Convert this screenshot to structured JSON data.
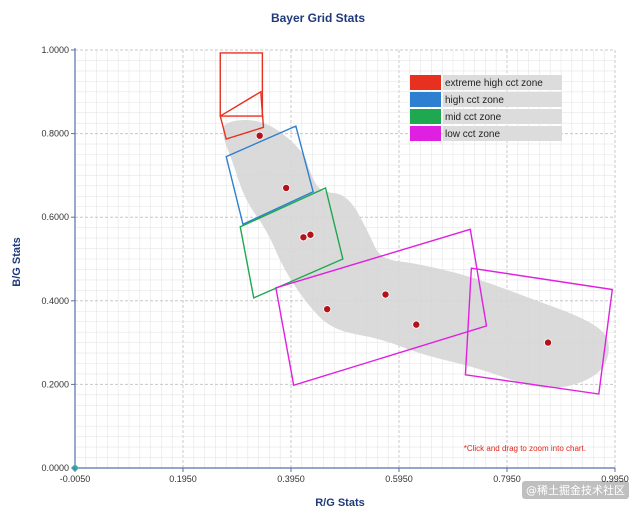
{
  "chart_data": {
    "type": "scatter",
    "title": "Bayer Grid Stats",
    "xlabel": "R/G Stats",
    "ylabel": "B/G Stats",
    "xlim": [
      -0.005,
      0.995
    ],
    "ylim": [
      0.0,
      1.0
    ],
    "x_ticks": [
      "-0.0050",
      "0.1950",
      "0.3950",
      "0.5950",
      "0.7950",
      "0.9950"
    ],
    "y_ticks": [
      "0.0000",
      "0.2000",
      "0.4000",
      "0.6000",
      "0.8000",
      "1.0000"
    ],
    "grid": true,
    "points": [
      {
        "x": 0.337,
        "y": 0.795
      },
      {
        "x": 0.386,
        "y": 0.67
      },
      {
        "x": 0.418,
        "y": 0.552
      },
      {
        "x": 0.431,
        "y": 0.558
      },
      {
        "x": 0.462,
        "y": 0.38
      },
      {
        "x": 0.57,
        "y": 0.415
      },
      {
        "x": 0.627,
        "y": 0.343
      },
      {
        "x": 0.871,
        "y": 0.3
      }
    ],
    "origin_marker": {
      "x": -0.005,
      "y": 0.0
    },
    "zones": [
      {
        "legend": "extreme high cct zone",
        "color": "#e8301f",
        "polygons": [
          [
            [
              0.264,
              0.993
            ],
            [
              0.342,
              0.993
            ],
            [
              0.342,
              0.842
            ],
            [
              0.264,
              0.842
            ]
          ],
          [
            [
              0.264,
              0.842
            ],
            [
              0.339,
              0.9
            ],
            [
              0.344,
              0.815
            ],
            [
              0.275,
              0.787
            ]
          ]
        ]
      },
      {
        "legend": "high cct zone",
        "color": "#2f7fd0",
        "polygons": [
          [
            [
              0.275,
              0.745
            ],
            [
              0.404,
              0.818
            ],
            [
              0.436,
              0.661
            ],
            [
              0.306,
              0.583
            ]
          ]
        ]
      },
      {
        "legend": "mid cct zone",
        "color": "#1ea84f",
        "polygons": [
          [
            [
              0.301,
              0.577
            ],
            [
              0.459,
              0.67
            ],
            [
              0.491,
              0.5
            ],
            [
              0.326,
              0.407
            ]
          ]
        ]
      },
      {
        "legend": "low cct zone",
        "color": "#e020e0",
        "polygons": [
          [
            [
              0.367,
              0.431
            ],
            [
              0.727,
              0.571
            ],
            [
              0.757,
              0.34
            ],
            [
              0.4,
              0.198
            ]
          ],
          [
            [
              0.729,
              0.478
            ],
            [
              0.99,
              0.427
            ],
            [
              0.965,
              0.177
            ],
            [
              0.718,
              0.223
            ]
          ]
        ]
      }
    ],
    "shaded_region": [
      [
        0.269,
        0.83
      ],
      [
        0.345,
        0.835
      ],
      [
        0.418,
        0.76
      ],
      [
        0.432,
        0.7
      ],
      [
        0.45,
        0.66
      ],
      [
        0.5,
        0.655
      ],
      [
        0.54,
        0.56
      ],
      [
        0.56,
        0.5
      ],
      [
        0.625,
        0.49
      ],
      [
        0.725,
        0.46
      ],
      [
        0.83,
        0.41
      ],
      [
        0.955,
        0.35
      ],
      [
        0.99,
        0.3
      ],
      [
        0.97,
        0.22
      ],
      [
        0.87,
        0.18
      ],
      [
        0.74,
        0.24
      ],
      [
        0.64,
        0.27
      ],
      [
        0.56,
        0.31
      ],
      [
        0.47,
        0.33
      ],
      [
        0.42,
        0.4
      ],
      [
        0.38,
        0.48
      ],
      [
        0.35,
        0.57
      ],
      [
        0.31,
        0.64
      ],
      [
        0.285,
        0.74
      ],
      [
        0.269,
        0.79
      ]
    ],
    "legend_position": "top-right",
    "annotation": "*Click and drag to zoom into chart."
  },
  "watermark": "@稀土掘金技术社区",
  "colors": {
    "point": "#b3121a",
    "grid_major": "#c8c8c8",
    "grid_minor": "#e6e6e6",
    "axis": "#5a6fa8",
    "shade": "#d6d6d6",
    "origin_marker": "#2ab3a0"
  }
}
